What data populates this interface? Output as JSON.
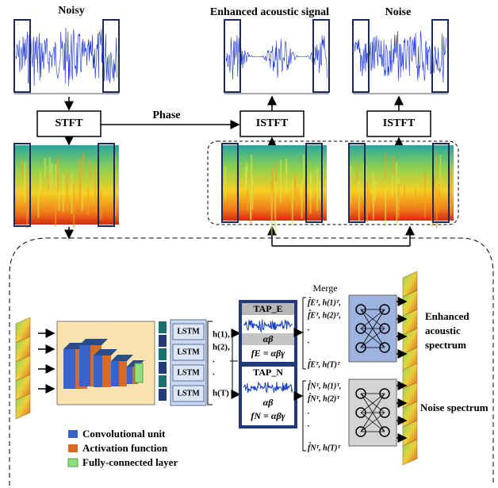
{
  "top": {
    "noisy_title": "Noisy",
    "enhanced_title": "Enhanced acoustic signal",
    "noise_title": "Noise",
    "stft": "STFT",
    "phase": "Phase",
    "istft_enhanced": "ISTFT",
    "istft_noise": "ISTFT"
  },
  "network": {
    "lstm": [
      "LSTM",
      "LSTM",
      "LSTM",
      "LSTM"
    ],
    "hidden": [
      "h(1),",
      "h(2),",
      ".",
      ".",
      "h(T)"
    ],
    "tap_e": {
      "title": "TAP_E",
      "weights": "αβ",
      "formula": "fE = αβγ"
    },
    "tap_n": {
      "title": "TAP_N",
      "weights": "αβ",
      "formula": "fN = αβγ"
    },
    "merge": "Merge",
    "merge_e": [
      "f̂Eᵀ, h(1)ᵀ,",
      "f̂Eᵀ, h(2)ᵀ,",
      ".",
      ".",
      "f̂Eᵀ, h(T)ᵀ"
    ],
    "merge_n": [
      "f̂Nᵀ, h(1)ᵀ,",
      "f̂Nᵀ, h(2)ᵀ",
      ".",
      ".",
      "f̂Nᵀ, h(T)ᵀ"
    ],
    "output_enhanced": [
      "Enhanced",
      "acoustic",
      "spectrum"
    ],
    "output_noise": "Noise spectrum"
  },
  "legend": [
    "Convolutional unit",
    "Activation function",
    "Fully-connected layer"
  ]
}
